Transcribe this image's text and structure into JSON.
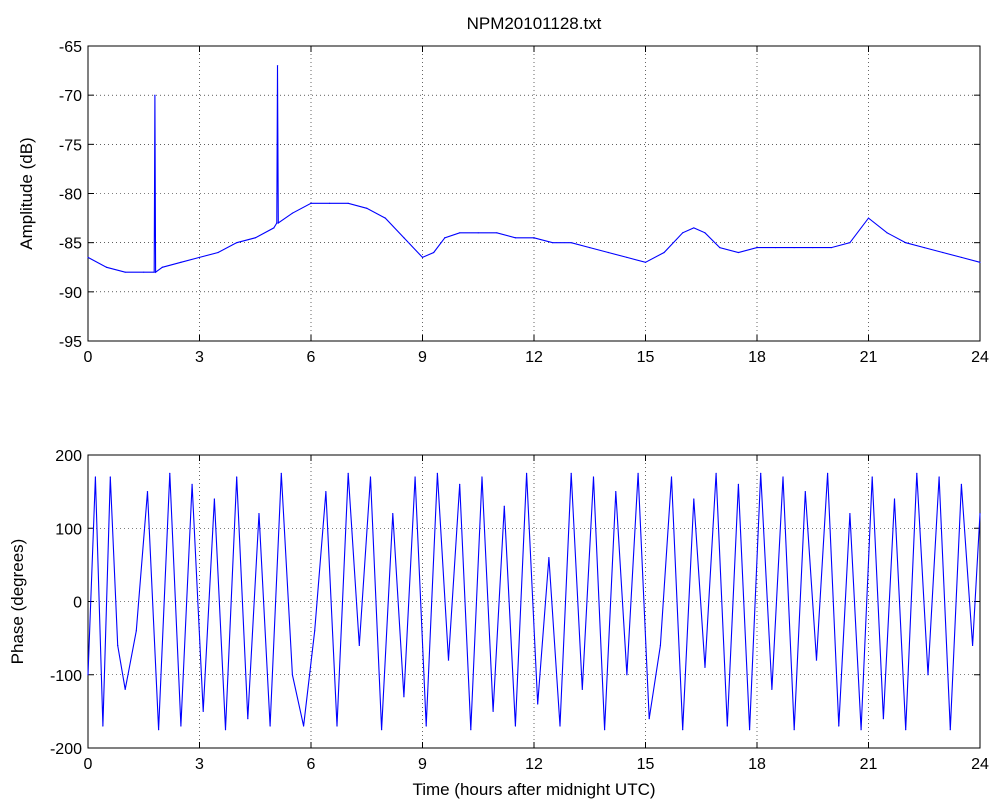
{
  "chart_data": [
    {
      "type": "line",
      "title": "NPM20101128.txt",
      "xlabel": "",
      "ylabel": "Amplitude (dB)",
      "xlim": [
        0,
        24
      ],
      "ylim": [
        -95,
        -65
      ],
      "grid": true,
      "line_color": "#0000ff",
      "x_ticks": [
        0,
        3,
        6,
        9,
        12,
        15,
        18,
        21,
        24
      ],
      "y_ticks": [
        -65,
        -70,
        -75,
        -80,
        -85,
        -90,
        -95
      ],
      "series": [
        {
          "x": [
            0,
            0.5,
            1,
            1.5,
            1.78,
            1.8,
            1.82,
            2,
            2.5,
            3,
            3.5,
            4,
            4.5,
            5,
            5.08,
            5.1,
            5.12,
            5.5,
            6,
            6.5,
            7,
            7.5,
            8,
            8.5,
            9,
            9.3,
            9.6,
            10,
            10.5,
            11,
            11.5,
            12,
            12.5,
            13,
            13.5,
            14,
            14.5,
            15,
            15.5,
            16,
            16.3,
            16.6,
            17,
            17.5,
            18,
            18.5,
            19,
            19.5,
            20,
            20.5,
            21,
            21.5,
            22,
            22.5,
            23,
            23.5,
            24
          ],
          "values": [
            -86.5,
            -87.5,
            -88,
            -88,
            -88,
            -70,
            -88,
            -87.5,
            -87,
            -86.5,
            -86,
            -85,
            -84.5,
            -83.5,
            -83,
            -67,
            -83,
            -82,
            -81,
            -81,
            -81,
            -81.5,
            -82.5,
            -84.5,
            -86.5,
            -86,
            -84.5,
            -84,
            -84,
            -84,
            -84.5,
            -84.5,
            -85,
            -85,
            -85.5,
            -86,
            -86.5,
            -87,
            -86,
            -84,
            -83.5,
            -84,
            -85.5,
            -86,
            -85.5,
            -85.5,
            -85.5,
            -85.5,
            -85.5,
            -85,
            -82.5,
            -84,
            -85,
            -85.5,
            -86,
            -86.5,
            -87
          ]
        }
      ]
    },
    {
      "type": "line",
      "title": "",
      "xlabel": "Time (hours after midnight UTC)",
      "ylabel": "Phase (degrees)",
      "xlim": [
        0,
        24
      ],
      "ylim": [
        -200,
        200
      ],
      "grid": true,
      "line_color": "#0000ff",
      "x_ticks": [
        0,
        3,
        6,
        9,
        12,
        15,
        18,
        21,
        24
      ],
      "y_ticks": [
        200,
        100,
        0,
        -100,
        -200
      ],
      "series": [
        {
          "x": [
            0,
            0.2,
            0.4,
            0.6,
            0.8,
            1,
            1.3,
            1.6,
            1.9,
            2.2,
            2.5,
            2.8,
            3.1,
            3.4,
            3.7,
            4,
            4.3,
            4.6,
            4.9,
            5.2,
            5.5,
            5.8,
            6.1,
            6.4,
            6.7,
            7,
            7.3,
            7.6,
            7.9,
            8.2,
            8.5,
            8.8,
            9.1,
            9.4,
            9.7,
            10,
            10.3,
            10.6,
            10.9,
            11.2,
            11.5,
            11.8,
            12.1,
            12.4,
            12.7,
            13,
            13.3,
            13.6,
            13.9,
            14.2,
            14.5,
            14.8,
            15.1,
            15.4,
            15.7,
            16,
            16.3,
            16.6,
            16.9,
            17.2,
            17.5,
            17.8,
            18.1,
            18.4,
            18.7,
            19,
            19.3,
            19.6,
            19.9,
            20.2,
            20.5,
            20.8,
            21.1,
            21.4,
            21.7,
            22,
            22.3,
            22.6,
            22.9,
            23.2,
            23.5,
            23.8,
            24
          ],
          "values": [
            -100,
            170,
            -170,
            170,
            -60,
            -120,
            -40,
            150,
            -175,
            175,
            -170,
            160,
            -150,
            140,
            -175,
            170,
            -160,
            120,
            -170,
            175,
            -100,
            -170,
            -40,
            150,
            -170,
            175,
            -60,
            170,
            -175,
            120,
            -130,
            170,
            -170,
            175,
            -80,
            160,
            -175,
            170,
            -150,
            130,
            -170,
            175,
            -140,
            60,
            -170,
            175,
            -120,
            170,
            -175,
            150,
            -100,
            175,
            -160,
            -60,
            170,
            -175,
            140,
            -90,
            175,
            -170,
            160,
            -175,
            175,
            -120,
            170,
            -175,
            150,
            -80,
            175,
            -170,
            120,
            -175,
            170,
            -160,
            140,
            -175,
            175,
            -100,
            170,
            -175,
            160,
            -60,
            120
          ]
        }
      ]
    }
  ]
}
